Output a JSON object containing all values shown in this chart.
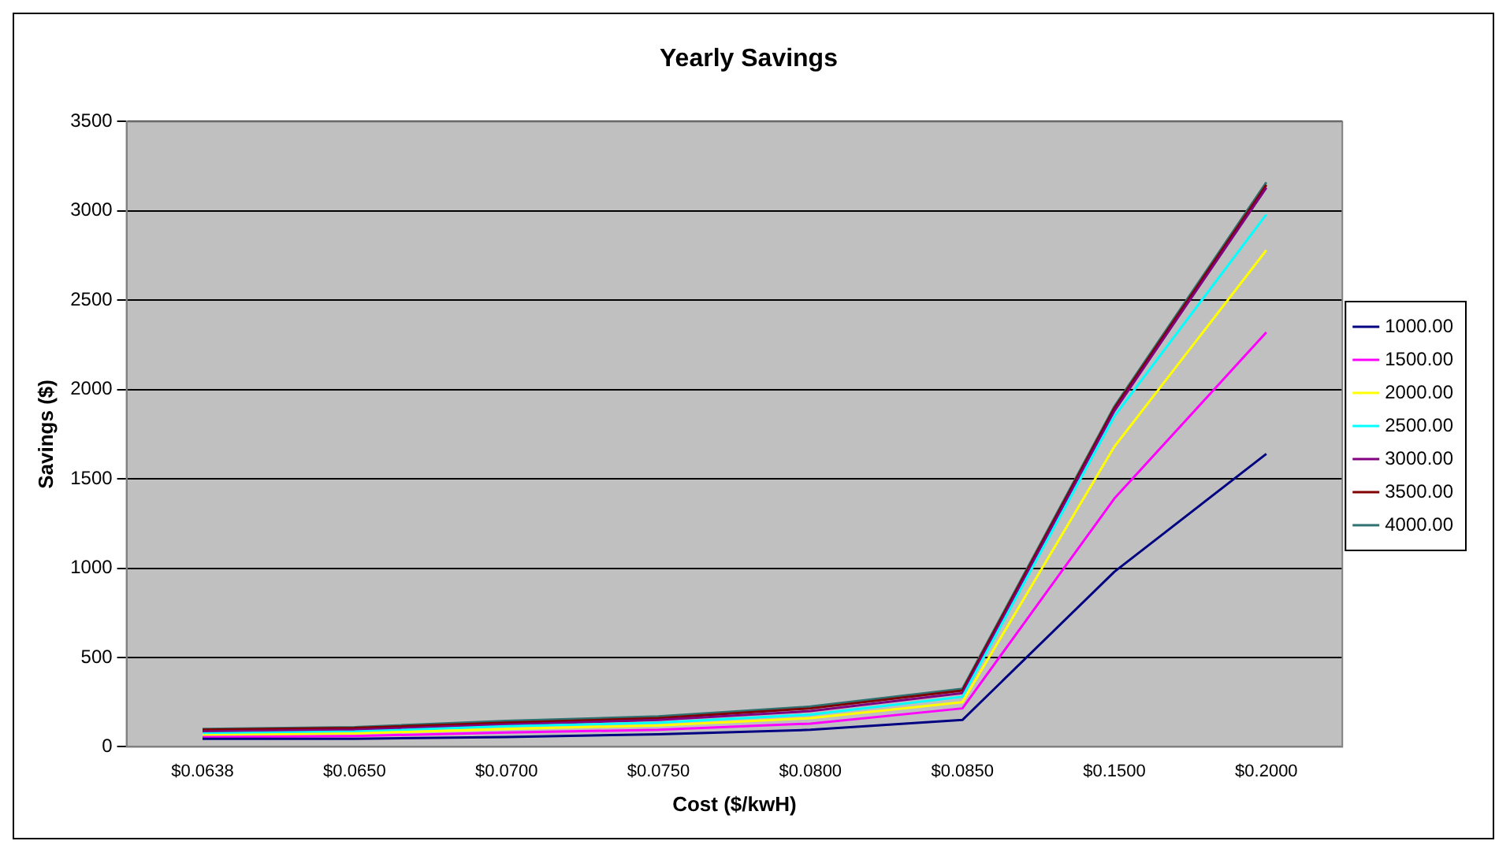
{
  "chart_data": {
    "type": "line",
    "title": "Yearly Savings",
    "xlabel": "Cost ($/kwH)",
    "ylabel": "Savings ($)",
    "categories": [
      "$0.0638",
      "$0.0650",
      "$0.0700",
      "$0.0750",
      "$0.0800",
      "$0.0850",
      "$0.1500",
      "$0.2000"
    ],
    "series": [
      {
        "name": "1000.00",
        "color": "#000080",
        "values": [
          45,
          45,
          55,
          70,
          95,
          150,
          980,
          1640
        ]
      },
      {
        "name": "1500.00",
        "color": "#ff00ff",
        "values": [
          55,
          60,
          80,
          95,
          130,
          215,
          1390,
          2320
        ]
      },
      {
        "name": "2000.00",
        "color": "#ffff00",
        "values": [
          65,
          75,
          100,
          120,
          160,
          250,
          1680,
          2780
        ]
      },
      {
        "name": "2500.00",
        "color": "#00ffff",
        "values": [
          75,
          85,
          115,
          135,
          180,
          280,
          1850,
          2980
        ]
      },
      {
        "name": "3000.00",
        "color": "#800080",
        "values": [
          85,
          95,
          125,
          150,
          200,
          300,
          1880,
          3130
        ]
      },
      {
        "name": "3500.00",
        "color": "#800000",
        "values": [
          95,
          105,
          135,
          160,
          215,
          315,
          1895,
          3145
        ]
      },
      {
        "name": "4000.00",
        "color": "#2f7070",
        "values": [
          100,
          110,
          145,
          170,
          225,
          325,
          1905,
          3160
        ]
      }
    ],
    "ylim": [
      0,
      3500
    ],
    "yticks": [
      0,
      500,
      1000,
      1500,
      2000,
      2500,
      3000,
      3500
    ],
    "grid": "y",
    "legend": "right",
    "marker": "none",
    "line_style": "solid"
  }
}
